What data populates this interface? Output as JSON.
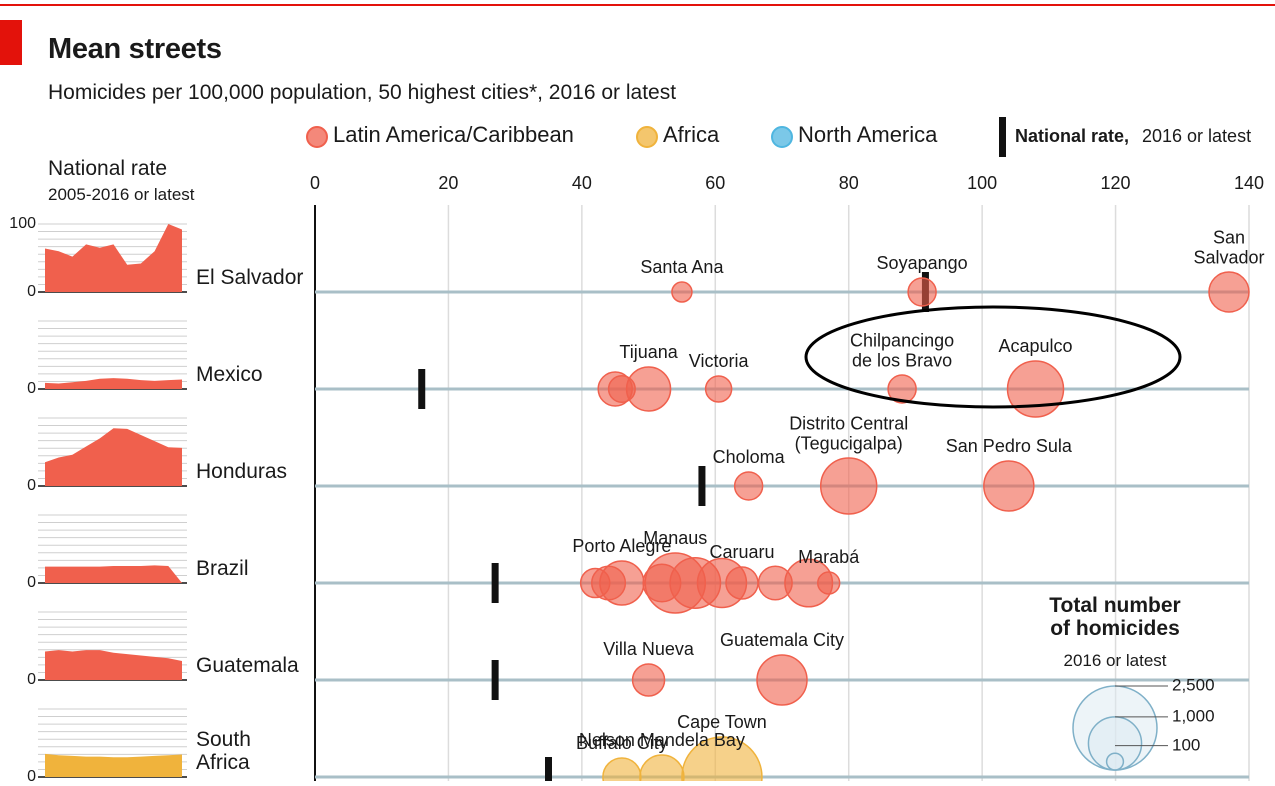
{
  "chart_data": {
    "type": "dot-bubble",
    "title": "Mean streets",
    "subtitle": "Homicides per 100,000 population, 50 highest cities*, 2016 or latest",
    "legend": [
      {
        "name": "Latin America/Caribbean",
        "color": "#f0604d"
      },
      {
        "name": "Africa",
        "color": "#f0b33c"
      },
      {
        "name": "North America",
        "color": "#4fb6e0"
      }
    ],
    "national_label": "National rate,",
    "national_sublabel": "2016 or latest",
    "spark_title": "National rate",
    "spark_subtitle": "2005-2016 or latest",
    "spark_ylim": [
      0,
      100
    ],
    "spark_yticks": [
      0,
      100
    ],
    "xlim": [
      0,
      140
    ],
    "xticks": [
      0,
      20,
      40,
      60,
      80,
      100,
      120,
      140
    ],
    "grid": true,
    "countries": [
      {
        "name": "El Salvador",
        "color": "#f0604d",
        "national_rate": 91.5,
        "trend": [
          64,
          60,
          52,
          70,
          65,
          70,
          40,
          42,
          60,
          100,
          92
        ],
        "cities": [
          {
            "name": "Santa Ana",
            "rate": 55,
            "homicides": 142
          },
          {
            "name": "Soyapango",
            "rate": 91,
            "homicides": 278
          },
          {
            "name": "San Salvador",
            "rate": 137,
            "homicides": 567
          }
        ]
      },
      {
        "name": "Mexico",
        "color": "#f0604d",
        "national_rate": 16,
        "trend": [
          9,
          8,
          10,
          12,
          15,
          16,
          15,
          13,
          12,
          13,
          14
        ],
        "cities": [
          {
            "name": null,
            "rate": 45,
            "homicides": 410
          },
          {
            "name": null,
            "rate": 46,
            "homicides": 250
          },
          {
            "name": "Tijuana",
            "rate": 50,
            "homicides": 686
          },
          {
            "name": "Victoria",
            "rate": 60.5,
            "homicides": 240
          },
          {
            "name": "Chilpancingo\nde los Bravo",
            "rate": 88,
            "homicides": 278
          },
          {
            "name": "Acapulco",
            "rate": 108,
            "homicides": 1111
          }
        ]
      },
      {
        "name": "Honduras",
        "color": "#f0604d",
        "national_rate": 58,
        "trend": [
          35,
          42,
          46,
          58,
          70,
          85,
          84,
          75,
          66,
          57,
          56
        ],
        "cities": [
          {
            "name": "Choloma",
            "rate": 65,
            "homicides": 278
          },
          {
            "name": "Distrito Central\n(Tegucigalpa)",
            "rate": 80,
            "homicides": 1111
          },
          {
            "name": "San Pedro Sula",
            "rate": 104,
            "homicides": 886
          }
        ]
      },
      {
        "name": "Brazil",
        "color": "#f0604d",
        "national_rate": 27,
        "trend": [
          24,
          24,
          24,
          24,
          24,
          25,
          25,
          25,
          26,
          25,
          0
        ],
        "cities": [
          {
            "name": null,
            "rate": 42,
            "homicides": 300
          },
          {
            "name": null,
            "rate": 44,
            "homicides": 400
          },
          {
            "name": "Porto Alegre",
            "rate": 46,
            "homicides": 686
          },
          {
            "name": null,
            "rate": 52,
            "homicides": 500
          },
          {
            "name": "Manaus",
            "rate": 54,
            "homicides": 1276
          },
          {
            "name": null,
            "rate": 57,
            "homicides": 900
          },
          {
            "name": null,
            "rate": 61,
            "homicides": 850
          },
          {
            "name": "Caruaru",
            "rate": 64,
            "homicides": 363
          },
          {
            "name": null,
            "rate": 69,
            "homicides": 400
          },
          {
            "name": null,
            "rate": 74,
            "homicides": 800
          },
          {
            "name": "Marabá",
            "rate": 77,
            "homicides": 170
          }
        ]
      },
      {
        "name": "Guatemala",
        "color": "#f0604d",
        "national_rate": 27,
        "trend": [
          42,
          44,
          42,
          44,
          44,
          40,
          38,
          36,
          34,
          32,
          28
        ],
        "cities": [
          {
            "name": "Villa Nueva",
            "rate": 50,
            "homicides": 363
          },
          {
            "name": "Guatemala City",
            "rate": 70,
            "homicides": 886
          }
        ]
      },
      {
        "name": "South\nAfrica",
        "color": "#f0b33c",
        "national_rate": 35,
        "trend": [
          34,
          32,
          31,
          30,
          30,
          29,
          29,
          30,
          31,
          32,
          33
        ],
        "cities": [
          {
            "name": "Buffalo City",
            "rate": 46,
            "homicides": 510
          },
          {
            "name": "Nelson Mandela Bay",
            "rate": 52,
            "homicides": 686
          },
          {
            "name": "Cape Town",
            "rate": 61,
            "homicides": 2268
          }
        ]
      }
    ],
    "size_legend": {
      "title": "Total number\nof homicides",
      "subtitle": "2016 or latest",
      "values": [
        {
          "value": 2500,
          "label": "2,500"
        },
        {
          "value": 1000,
          "label": "1,000"
        },
        100
      ]
    }
  }
}
